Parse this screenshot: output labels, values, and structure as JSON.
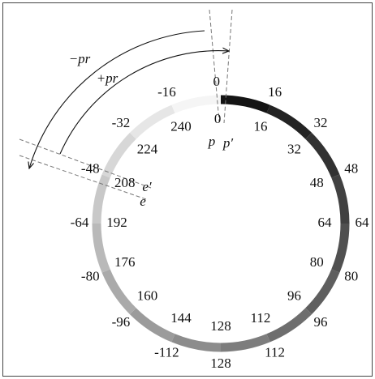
{
  "ring": {
    "outer_labels": [
      0,
      16,
      32,
      48,
      64,
      80,
      96,
      112,
      128,
      -112,
      -96,
      -80,
      -64,
      -48,
      -32,
      -16
    ],
    "inner_labels": [
      0,
      16,
      32,
      48,
      64,
      80,
      96,
      112,
      128,
      144,
      160,
      176,
      192,
      208,
      224,
      240
    ]
  },
  "annotations": {
    "p": "p",
    "p_prime": "p′",
    "e": "e",
    "e_prime": "e′",
    "minus_pr": "−pr",
    "plus_pr": "+pr"
  }
}
